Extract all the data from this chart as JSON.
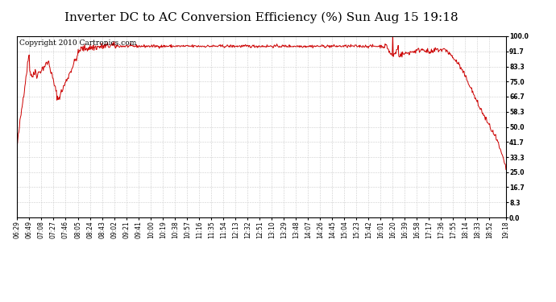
{
  "title": "Inverter DC to AC Conversion Efficiency (%) Sun Aug 15 19:18",
  "copyright": "Copyright 2010 Cartronics.com",
  "line_color": "#cc0000",
  "bg_color": "#ffffff",
  "plot_bg_color": "#ffffff",
  "grid_color": "#cccccc",
  "yticks": [
    0.0,
    8.3,
    16.7,
    25.0,
    33.3,
    41.7,
    50.0,
    58.3,
    66.7,
    75.0,
    83.3,
    91.7,
    100.0
  ],
  "ylim": [
    0.0,
    100.0
  ],
  "xtick_labels": [
    "06:29",
    "06:49",
    "07:08",
    "07:27",
    "07:46",
    "08:05",
    "08:24",
    "08:43",
    "09:02",
    "09:21",
    "09:41",
    "10:00",
    "10:19",
    "10:38",
    "10:57",
    "11:16",
    "11:35",
    "11:54",
    "12:13",
    "12:32",
    "12:51",
    "13:10",
    "13:29",
    "13:48",
    "14:07",
    "14:26",
    "14:45",
    "15:04",
    "15:23",
    "15:42",
    "16:01",
    "16:20",
    "16:39",
    "16:58",
    "17:17",
    "17:36",
    "17:55",
    "18:14",
    "18:33",
    "18:52",
    "19:18"
  ],
  "title_fontsize": 11,
  "copyright_fontsize": 6.5,
  "tick_fontsize": 5.5,
  "line_width": 0.7
}
